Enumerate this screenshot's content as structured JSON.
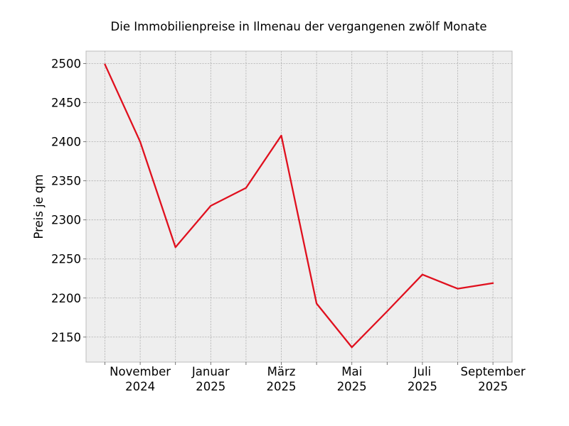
{
  "chart_data": {
    "type": "line",
    "title": "Die Immobilienpreise in Ilmenau der vergangenen zwölf Monate",
    "xlabel": "",
    "ylabel": "Preis je qm",
    "ylim": [
      2118,
      2516
    ],
    "y_ticks": [
      2150,
      2200,
      2250,
      2300,
      2350,
      2400,
      2450,
      2500
    ],
    "x": [
      "2024-10",
      "2024-11",
      "2024-12",
      "2025-01",
      "2025-02",
      "2025-03",
      "2025-04",
      "2025-05",
      "2025-06",
      "2025-07",
      "2025-08",
      "2025-09"
    ],
    "x_tick_labels": [
      {
        "x": "2024-11",
        "line1": "November",
        "line2": "2024"
      },
      {
        "x": "2025-01",
        "line1": "Januar",
        "line2": "2025"
      },
      {
        "x": "2025-03",
        "line1": "März",
        "line2": "2025"
      },
      {
        "x": "2025-05",
        "line1": "Mai",
        "line2": "2025"
      },
      {
        "x": "2025-07",
        "line1": "Juli",
        "line2": "2025"
      },
      {
        "x": "2025-09",
        "line1": "September",
        "line2": "2025"
      }
    ],
    "series": [
      {
        "values": [
          2499,
          2400,
          2265,
          2318,
          2341,
          2408,
          2193,
          2137,
          2183,
          2230,
          2212,
          2219
        ],
        "color": "#e0101e"
      }
    ],
    "grid": true,
    "plot_background": "#eeeeee",
    "grid_color": "#b0b0b0"
  }
}
